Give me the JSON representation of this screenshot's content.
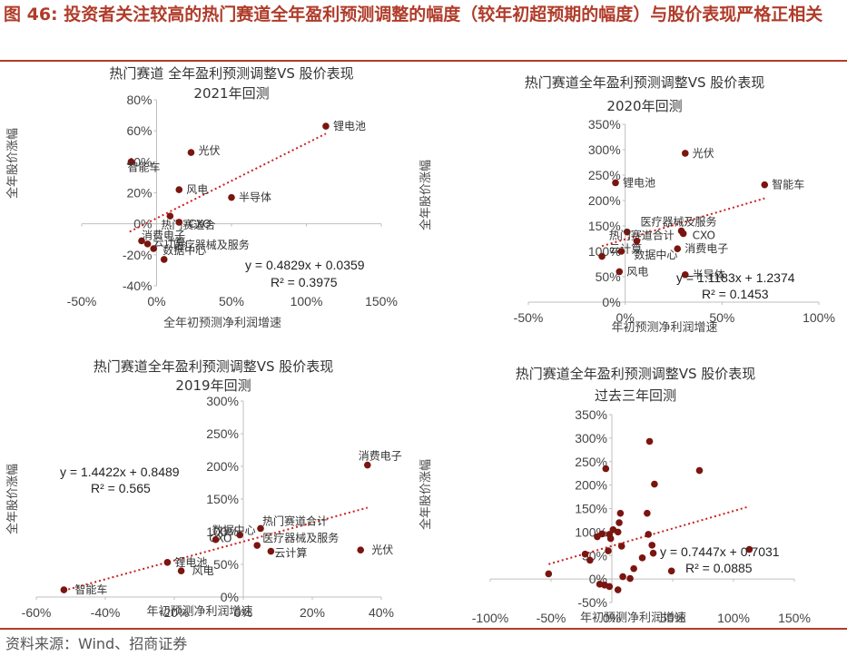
{
  "figure_title": "图 46: 投资者关注较高的热门赛道全年盈利预测调整的幅度（较年初超预期的幅度）与股价表现严格正相关",
  "source": "资料来源：Wind、招商证券",
  "colors": {
    "point": "#7a1510",
    "trend": "#cc1f1f",
    "title": "#b03c2a",
    "axis": "#bfbfbf"
  },
  "chart_data": [
    {
      "type": "scatter",
      "title": [
        "热门赛道 全年盈利预测调整VS 股价表现",
        "2021年回测"
      ],
      "xlabel": "全年初预测净利润增速",
      "ylabel": "全年股价涨幅",
      "xlim": [
        -0.5,
        1.5
      ],
      "ylim": [
        -0.4,
        0.8
      ],
      "xticks": [
        -0.5,
        0,
        0.5,
        1,
        1.5
      ],
      "xtick_labels": [
        "-50%",
        "0%",
        "50%",
        "100%",
        "150%"
      ],
      "yticks": [
        -0.4,
        -0.2,
        0,
        0.2,
        0.4,
        0.6,
        0.8
      ],
      "ytick_labels": [
        "-40%",
        "-20%",
        "0%",
        "20%",
        "40%",
        "60%",
        "80%"
      ],
      "points": [
        {
          "x": 1.13,
          "y": 0.63,
          "label": "锂电池"
        },
        {
          "x": 0.23,
          "y": 0.46,
          "label": "光伏"
        },
        {
          "x": -0.17,
          "y": 0.4,
          "label": "智能车"
        },
        {
          "x": 0.15,
          "y": 0.22,
          "label": "风电"
        },
        {
          "x": 0.5,
          "y": 0.17,
          "label": "半导体"
        },
        {
          "x": 0.09,
          "y": 0.05,
          "label": "热门赛道合"
        },
        {
          "x": 0.15,
          "y": 0.01,
          "label": "CXO"
        },
        {
          "x": -0.1,
          "y": -0.11,
          "label": "消费电子"
        },
        {
          "x": -0.06,
          "y": -0.13,
          "label": "云计算"
        },
        {
          "x": -0.02,
          "y": -0.16,
          "label": "数据中心"
        },
        {
          "x": 0.05,
          "y": -0.23,
          "label": "医疗器械及服务"
        }
      ],
      "trend": {
        "slope": 0.4829,
        "intercept": 0.0359,
        "x_range": [
          -0.18,
          1.13
        ]
      },
      "equation": "y = 0.4829x + 0.0359",
      "r2": "R² = 0.3975"
    },
    {
      "type": "scatter",
      "title": [
        "热门赛道全年盈利预测调整VS 股价表现",
        "2020年回测"
      ],
      "xlabel": "年初预测净利润增速",
      "ylabel": "全年股价涨幅",
      "xlim": [
        -0.5,
        1.0
      ],
      "ylim": [
        0,
        3.5
      ],
      "xticks": [
        -0.5,
        0,
        0.5,
        1.0
      ],
      "xtick_labels": [
        "-50%",
        "0%",
        "50%",
        "100%"
      ],
      "yticks": [
        0,
        0.5,
        1,
        1.5,
        2,
        2.5,
        3,
        3.5
      ],
      "ytick_labels": [
        "0%",
        "50%",
        "100%",
        "150%",
        "200%",
        "250%",
        "300%",
        "350%"
      ],
      "points": [
        {
          "x": 0.31,
          "y": 2.93,
          "label": "光伏"
        },
        {
          "x": -0.05,
          "y": 2.35,
          "label": "锂电池"
        },
        {
          "x": 0.72,
          "y": 2.31,
          "label": "智能车"
        },
        {
          "x": 0.29,
          "y": 1.4,
          "label": "医疗器械及服务"
        },
        {
          "x": 0.3,
          "y": 1.35,
          "label": "CXO"
        },
        {
          "x": 0.01,
          "y": 1.38,
          "label": "热门赛道合计"
        },
        {
          "x": 0.27,
          "y": 1.05,
          "label": "消费电子"
        },
        {
          "x": -0.12,
          "y": 0.9,
          "label": "云计算"
        },
        {
          "x": -0.02,
          "y": 1.0,
          "label": "数据中心"
        },
        {
          "x": -0.03,
          "y": 0.6,
          "label": "风电"
        },
        {
          "x": 0.31,
          "y": 0.54,
          "label": "半导体"
        },
        {
          "x": 0.06,
          "y": 1.2,
          "label": ""
        }
      ],
      "trend": {
        "slope": 1.1183,
        "intercept": 1.2374,
        "x_range": [
          -0.12,
          0.72
        ]
      },
      "equation": "y = 1.1183x + 1.2374",
      "r2": "R² = 0.1453"
    },
    {
      "type": "scatter",
      "title": [
        "热门赛道全年盈利预测调整VS 股价表现",
        "2019年回测"
      ],
      "xlabel": "年初预测净利润增速",
      "ylabel": "全年股价涨幅",
      "xlim": [
        -0.6,
        0.4
      ],
      "ylim": [
        0,
        3.0
      ],
      "xticks": [
        -0.6,
        -0.4,
        -0.2,
        0,
        0.2,
        0.4
      ],
      "xtick_labels": [
        "-60%",
        "-40%",
        "-20%",
        "0%",
        "20%",
        "40%"
      ],
      "yticks": [
        0,
        0.5,
        1,
        1.5,
        2,
        2.5,
        3
      ],
      "ytick_labels": [
        "0%",
        "50%",
        "100%",
        "150%",
        "200%",
        "250%",
        "300%"
      ],
      "points": [
        {
          "x": 0.36,
          "y": 2.02,
          "label": "消费电子"
        },
        {
          "x": 0.34,
          "y": 0.72,
          "label": "光伏"
        },
        {
          "x": -0.52,
          "y": 0.11,
          "label": "智能车"
        },
        {
          "x": -0.22,
          "y": 0.53,
          "label": "锂电池"
        },
        {
          "x": -0.18,
          "y": 0.4,
          "label": "风电"
        },
        {
          "x": 0.05,
          "y": 1.05,
          "label": "热门赛道合计"
        },
        {
          "x": -0.01,
          "y": 0.95,
          "label": "CXO"
        },
        {
          "x": 0.04,
          "y": 0.79,
          "label": "医疗器械及服务"
        },
        {
          "x": 0.08,
          "y": 0.7,
          "label": "云计算"
        },
        {
          "x": -0.08,
          "y": 0.88,
          "label": "数据中心"
        }
      ],
      "trend": {
        "slope": 1.4422,
        "intercept": 0.8489,
        "x_range": [
          -0.52,
          0.36
        ]
      },
      "equation": "y = 1.4422x + 0.8489",
      "r2": "R² = 0.565"
    },
    {
      "type": "scatter",
      "title": [
        "热门赛道全年盈利预测调整VS 股价表现",
        "过去三年回测"
      ],
      "xlabel": "年初预测净利润增速",
      "ylabel": "全年股价涨幅",
      "xlim": [
        -1.0,
        1.5
      ],
      "ylim": [
        -0.5,
        3.5
      ],
      "xticks": [
        -1.0,
        -0.5,
        0,
        0.5,
        1.0,
        1.5
      ],
      "xtick_labels": [
        "-100%",
        "-50%",
        "0%",
        "50%",
        "100%",
        "150%"
      ],
      "yticks": [
        -0.5,
        0,
        0.5,
        1,
        1.5,
        2,
        2.5,
        3,
        3.5
      ],
      "ytick_labels": [
        "-50%",
        "0%",
        "50%",
        "100%",
        "150%",
        "200%",
        "250%",
        "300%",
        "350%"
      ],
      "points": [
        {
          "x": 0.31,
          "y": 2.93,
          "label": ""
        },
        {
          "x": -0.05,
          "y": 2.35,
          "label": ""
        },
        {
          "x": 0.72,
          "y": 2.31,
          "label": ""
        },
        {
          "x": 0.35,
          "y": 2.02,
          "label": ""
        },
        {
          "x": 0.29,
          "y": 1.4,
          "label": ""
        },
        {
          "x": 0.07,
          "y": 1.4,
          "label": ""
        },
        {
          "x": 0.06,
          "y": 1.2,
          "label": ""
        },
        {
          "x": 0.01,
          "y": 1.05,
          "label": ""
        },
        {
          "x": -0.08,
          "y": 0.96,
          "label": ""
        },
        {
          "x": -0.02,
          "y": 0.95,
          "label": ""
        },
        {
          "x": 0.05,
          "y": 1.0,
          "label": ""
        },
        {
          "x": -0.12,
          "y": 0.9,
          "label": ""
        },
        {
          "x": 0.3,
          "y": 0.95,
          "label": ""
        },
        {
          "x": 0.33,
          "y": 0.72,
          "label": ""
        },
        {
          "x": -0.01,
          "y": 0.86,
          "label": ""
        },
        {
          "x": 0.08,
          "y": 0.7,
          "label": ""
        },
        {
          "x": -0.22,
          "y": 0.53,
          "label": ""
        },
        {
          "x": -0.03,
          "y": 0.6,
          "label": ""
        },
        {
          "x": 0.34,
          "y": 0.55,
          "label": ""
        },
        {
          "x": 0.25,
          "y": 0.45,
          "label": ""
        },
        {
          "x": -0.18,
          "y": 0.4,
          "label": ""
        },
        {
          "x": 0.18,
          "y": 0.22,
          "label": ""
        },
        {
          "x": 0.49,
          "y": 0.17,
          "label": ""
        },
        {
          "x": -0.52,
          "y": 0.11,
          "label": ""
        },
        {
          "x": 0.09,
          "y": 0.05,
          "label": ""
        },
        {
          "x": 0.15,
          "y": 0.01,
          "label": ""
        },
        {
          "x": -0.1,
          "y": -0.11,
          "label": ""
        },
        {
          "x": -0.06,
          "y": -0.13,
          "label": ""
        },
        {
          "x": -0.02,
          "y": -0.16,
          "label": ""
        },
        {
          "x": 0.05,
          "y": -0.23,
          "label": ""
        },
        {
          "x": 1.13,
          "y": 0.63,
          "label": ""
        }
      ],
      "trend": {
        "slope": 0.7447,
        "intercept": 0.7031,
        "x_range": [
          -0.52,
          1.13
        ]
      },
      "equation": "y = 0.7447x + 0.7031",
      "r2": "R² = 0.0885"
    }
  ]
}
